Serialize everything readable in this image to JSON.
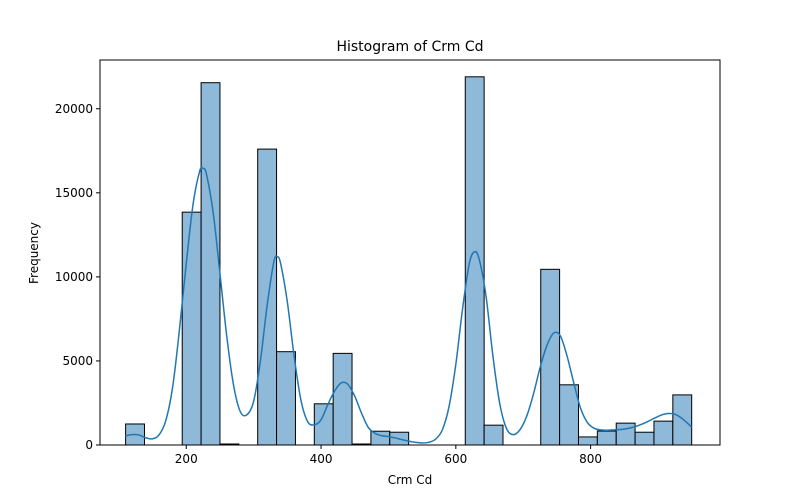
{
  "chart_data": {
    "type": "bar",
    "title": "Histogram of Crm Cd",
    "xlabel": "Crm Cd",
    "ylabel": "Frequency",
    "xlim": [
      72,
      992
    ],
    "ylim": [
      0,
      22900
    ],
    "x_ticks": [
      200,
      400,
      600,
      800
    ],
    "y_ticks": [
      0,
      5000,
      10000,
      15000,
      20000
    ],
    "bin_width": 28,
    "bin_edges_start": 110,
    "bins": [
      {
        "x0": 110,
        "x1": 138,
        "count": 1250
      },
      {
        "x0": 138,
        "x1": 166,
        "count": 0
      },
      {
        "x0": 166,
        "x1": 194,
        "count": 0
      },
      {
        "x0": 194,
        "x1": 222,
        "count": 13850
      },
      {
        "x0": 222,
        "x1": 250,
        "count": 21550
      },
      {
        "x0": 250,
        "x1": 278,
        "count": 60
      },
      {
        "x0": 278,
        "x1": 306,
        "count": 0
      },
      {
        "x0": 306,
        "x1": 334,
        "count": 17600
      },
      {
        "x0": 334,
        "x1": 362,
        "count": 5550
      },
      {
        "x0": 362,
        "x1": 390,
        "count": 0
      },
      {
        "x0": 390,
        "x1": 418,
        "count": 2450
      },
      {
        "x0": 418,
        "x1": 446,
        "count": 5450
      },
      {
        "x0": 446,
        "x1": 474,
        "count": 60
      },
      {
        "x0": 474,
        "x1": 502,
        "count": 820
      },
      {
        "x0": 502,
        "x1": 530,
        "count": 760
      },
      {
        "x0": 530,
        "x1": 558,
        "count": 0
      },
      {
        "x0": 558,
        "x1": 586,
        "count": 0
      },
      {
        "x0": 586,
        "x1": 614,
        "count": 0
      },
      {
        "x0": 614,
        "x1": 642,
        "count": 21900
      },
      {
        "x0": 642,
        "x1": 670,
        "count": 1180
      },
      {
        "x0": 670,
        "x1": 698,
        "count": 0
      },
      {
        "x0": 698,
        "x1": 726,
        "count": 0
      },
      {
        "x0": 726,
        "x1": 754,
        "count": 10450
      },
      {
        "x0": 754,
        "x1": 782,
        "count": 3580
      },
      {
        "x0": 782,
        "x1": 810,
        "count": 480
      },
      {
        "x0": 810,
        "x1": 838,
        "count": 830
      },
      {
        "x0": 838,
        "x1": 866,
        "count": 1300
      },
      {
        "x0": 866,
        "x1": 894,
        "count": 760
      },
      {
        "x0": 894,
        "x1": 922,
        "count": 1420
      },
      {
        "x0": 922,
        "x1": 950,
        "count": 2980
      }
    ],
    "kde": {
      "x": [
        110,
        120,
        130,
        140,
        150,
        160,
        170,
        180,
        190,
        200,
        210,
        220,
        225,
        230,
        240,
        250,
        260,
        270,
        280,
        290,
        300,
        310,
        320,
        330,
        335,
        340,
        350,
        360,
        370,
        380,
        390,
        400,
        410,
        420,
        430,
        440,
        450,
        460,
        470,
        480,
        490,
        500,
        510,
        520,
        530,
        540,
        550,
        560,
        570,
        580,
        590,
        600,
        610,
        620,
        628,
        635,
        645,
        655,
        665,
        675,
        685,
        695,
        705,
        715,
        725,
        735,
        745,
        755,
        765,
        775,
        785,
        795,
        805,
        815,
        825,
        835,
        845,
        855,
        865,
        875,
        885,
        895,
        905,
        915,
        925,
        935,
        945,
        950
      ],
      "y": [
        550,
        620,
        590,
        430,
        370,
        620,
        1500,
        3500,
        6900,
        10800,
        14300,
        16300,
        16450,
        16100,
        13800,
        10200,
        6500,
        3600,
        2000,
        1800,
        2600,
        5000,
        8300,
        10900,
        11200,
        10800,
        8500,
        5300,
        2700,
        1400,
        1200,
        1500,
        2400,
        3200,
        3700,
        3600,
        2900,
        1900,
        1050,
        700,
        550,
        500,
        420,
        320,
        230,
        160,
        120,
        160,
        350,
        900,
        2300,
        4800,
        8100,
        10800,
        11500,
        11000,
        8800,
        5300,
        2500,
        1000,
        620,
        900,
        1700,
        3000,
        4600,
        5900,
        6650,
        6500,
        5300,
        3700,
        2200,
        1350,
        1000,
        900,
        880,
        900,
        920,
        980,
        1080,
        1220,
        1400,
        1600,
        1780,
        1870,
        1830,
        1600,
        1250,
        1050
      ]
    },
    "colors": {
      "bar_fill": "#8fb9d9",
      "bar_edge": "#000000",
      "kde_line": "#1f77b4"
    }
  }
}
